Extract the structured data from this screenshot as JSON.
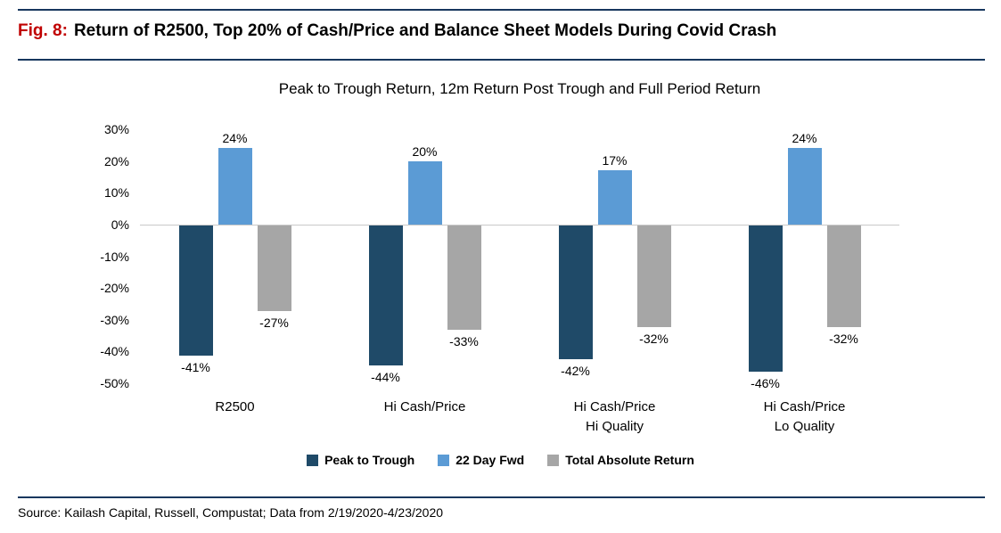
{
  "header": {
    "figure_label": "Fig. 8:",
    "title": "Return of R2500, Top 20% of Cash/Price and Balance Sheet Models During Covid Crash"
  },
  "chart_data": {
    "type": "bar",
    "title": "Peak to Trough Return, 12m Return Post Trough and Full Period Return",
    "categories": [
      "R2500",
      "Hi Cash/Price",
      "Hi Cash/Price\nHi Quality",
      "Hi Cash/Price\nLo Quality"
    ],
    "series": [
      {
        "name": "Peak to Trough",
        "color": "#1F4A68",
        "values": [
          -41,
          -44,
          -42,
          -46
        ]
      },
      {
        "name": "22 Day Fwd",
        "color": "#5B9BD5",
        "values": [
          24,
          20,
          17,
          24
        ]
      },
      {
        "name": "Total Absolute Return",
        "color": "#A6A6A6",
        "values": [
          -27,
          -33,
          -32,
          -32
        ]
      }
    ],
    "ylim": [
      -50,
      30
    ],
    "ytick_step": 10,
    "ytick_suffix": "%",
    "value_suffix": "%",
    "legend_position": "bottom",
    "grid": false,
    "zero_line_color": "#C9C9C9"
  },
  "footer": {
    "source": "Source: Kailash Capital, Russell, Compustat; Data from 2/19/2020-4/23/2020"
  },
  "colors": {
    "rule": "#17375E",
    "figure_label": "#C00000"
  }
}
